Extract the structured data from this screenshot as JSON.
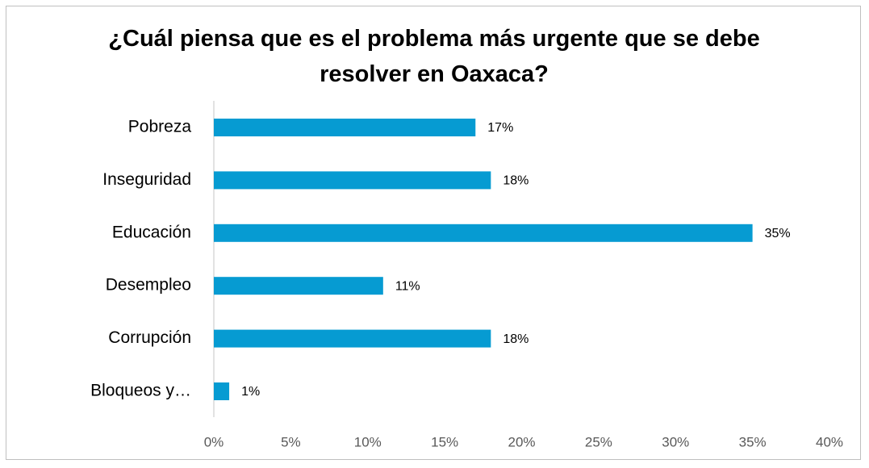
{
  "chart_data": {
    "type": "bar",
    "orientation": "horizontal",
    "title": "¿Cuál piensa que es el problema más urgente que se debe resolver en Oaxaca?",
    "categories": [
      "Pobreza",
      "Inseguridad",
      "Educación",
      "Desempleo",
      "Corrupción",
      "Bloqueos y…"
    ],
    "values": [
      17,
      18,
      35,
      11,
      18,
      1
    ],
    "value_labels": [
      "17%",
      "18%",
      "35%",
      "11%",
      "18%",
      "1%"
    ],
    "color": "#069bd2",
    "xlim": [
      0,
      40
    ],
    "xticks": [
      {
        "value": 0,
        "label": "0%"
      },
      {
        "value": 5,
        "label": "5%"
      },
      {
        "value": 10,
        "label": "10%"
      },
      {
        "value": 15,
        "label": "15%"
      },
      {
        "value": 20,
        "label": "20%"
      },
      {
        "value": 25,
        "label": "25%"
      },
      {
        "value": 30,
        "label": "30%"
      },
      {
        "value": 35,
        "label": "35%"
      },
      {
        "value": 40,
        "label": "40%"
      }
    ],
    "grid": false
  }
}
